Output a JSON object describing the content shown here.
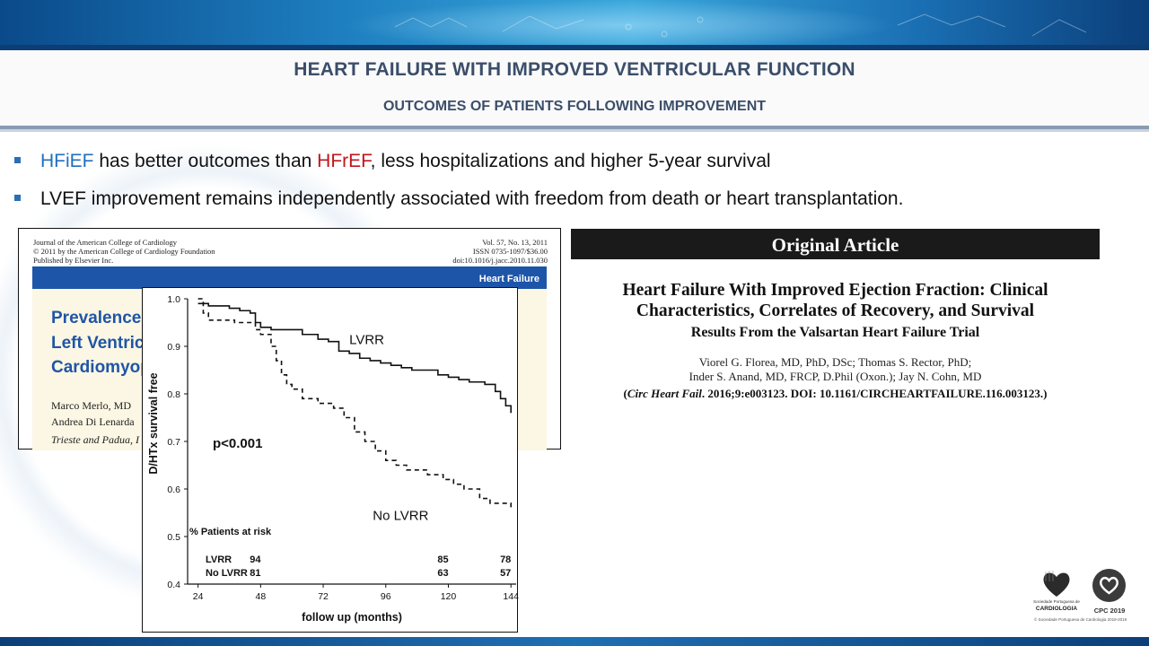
{
  "header": {
    "title": "HEART FAILURE WITH IMPROVED VENTRICULAR FUNCTION",
    "subtitle": "OUTCOMES OF PATIENTS FOLLOWING IMPROVEMENT"
  },
  "bullets": [
    {
      "term1": "HFiEF",
      "text1": " has better outcomes than ",
      "term2": "HFrEF",
      "text2": ", less hospitalizations and higher 5-year survival"
    },
    {
      "text": "LVEF improvement remains independently associated with freedom from death or heart transplantation."
    }
  ],
  "colors": {
    "accent_blue": "#1f6fc0",
    "accent_red": "#c0151b",
    "title_color": "#3b4e6a",
    "journal_blue": "#1d55a8"
  },
  "paper": {
    "journal_line1": "Journal of the American College of Cardiology",
    "journal_line2": "© 2011 by the American College of Cardiology Foundation",
    "journal_line3": "Published by Elsevier Inc.",
    "vol": "Vol. 57, No. 13, 2011",
    "issn": "ISSN 0735-1097/$36.00",
    "doi": "doi:10.1016/j.jacc.2010.11.030",
    "section": "Heart Failure",
    "title_line1": "Prevalence a",
    "title_line2": "Left Ventric",
    "title_line3": "Cardiomyopa",
    "authors_line1": "Marco Merlo, MD",
    "authors_line2": "Andrea Di Lenarda",
    "affiliation": "Trieste and Padua, I"
  },
  "chart_data": {
    "type": "line",
    "title": "",
    "xlabel": "follow up (months)",
    "ylabel": "D/HTx survival free",
    "xlim": [
      20,
      146
    ],
    "ylim": [
      0.4,
      1.0
    ],
    "x_ticks": [
      24,
      48,
      72,
      96,
      120,
      144
    ],
    "y_ticks": [
      0.4,
      0.5,
      0.6,
      0.7,
      0.8,
      0.9,
      1.0
    ],
    "y_tick_labels": [
      "0.4",
      "0.5",
      "0.6",
      "0.7",
      "0.8",
      "0.9",
      "1.0"
    ],
    "series": [
      {
        "name": "LVRR",
        "style": "solid",
        "x": [
          24,
          26,
          28,
          34,
          36,
          40,
          44,
          46,
          48,
          52,
          56,
          64,
          70,
          74,
          78,
          82,
          86,
          90,
          94,
          98,
          102,
          106,
          110,
          116,
          120,
          124,
          128,
          134,
          138,
          140,
          142,
          144
        ],
        "y": [
          0.99,
          0.99,
          0.985,
          0.985,
          0.98,
          0.975,
          0.97,
          0.95,
          0.94,
          0.935,
          0.935,
          0.925,
          0.915,
          0.91,
          0.89,
          0.885,
          0.875,
          0.87,
          0.865,
          0.86,
          0.855,
          0.85,
          0.85,
          0.84,
          0.835,
          0.83,
          0.825,
          0.82,
          0.805,
          0.79,
          0.775,
          0.76
        ]
      },
      {
        "name": "No LVRR",
        "style": "dashed",
        "x": [
          24,
          26,
          28,
          38,
          46,
          48,
          52,
          54,
          56,
          58,
          60,
          62,
          64,
          70,
          76,
          80,
          84,
          88,
          92,
          96,
          100,
          104,
          108,
          112,
          118,
          122,
          126,
          132,
          136,
          144
        ],
        "y": [
          1.0,
          0.97,
          0.955,
          0.95,
          0.935,
          0.925,
          0.9,
          0.87,
          0.84,
          0.82,
          0.81,
          0.81,
          0.79,
          0.78,
          0.77,
          0.75,
          0.72,
          0.7,
          0.68,
          0.66,
          0.65,
          0.64,
          0.64,
          0.63,
          0.62,
          0.61,
          0.6,
          0.58,
          0.57,
          0.56
        ]
      }
    ],
    "annotations": {
      "pvalue": "p<0.001",
      "at_risk_header": "% Patients at risk"
    },
    "at_risk": [
      {
        "label": "LVRR",
        "values": [
          "94",
          "85",
          "78"
        ]
      },
      {
        "label": "No LVRR",
        "values": [
          "81",
          "63",
          "57"
        ]
      }
    ],
    "at_risk_x": [
      48,
      120,
      144
    ],
    "grid": false,
    "legend": "inline labels"
  },
  "article": {
    "banner": "Original Article",
    "title_line1": "Heart Failure With Improved Ejection Fraction: Clinical",
    "title_line2": "Characteristics, Correlates of Recovery, and Survival",
    "subtitle": "Results From the Valsartan Heart Failure Trial",
    "authors_line1": "Viorel G. Florea, MD, PhD, DSc; Thomas S. Rector, PhD;",
    "authors_line2": "Inder S. Anand, MD, FRCP, D.Phil (Oxon.); Jay N. Cohn, MD",
    "cite_journal": "Circ Heart Fail",
    "cite_rest": ". 2016;9:e003123. DOI: 10.1161/CIRCHEARTFAILURE.116.003123."
  },
  "logos": {
    "spc_line1": "Sociedade Portuguesa de",
    "spc_line2": "CARDIOLOGIA",
    "cpc": "CPC 2019",
    "copyright": "© Sociedade Portuguesa de Cardiologia 2018-2019"
  }
}
